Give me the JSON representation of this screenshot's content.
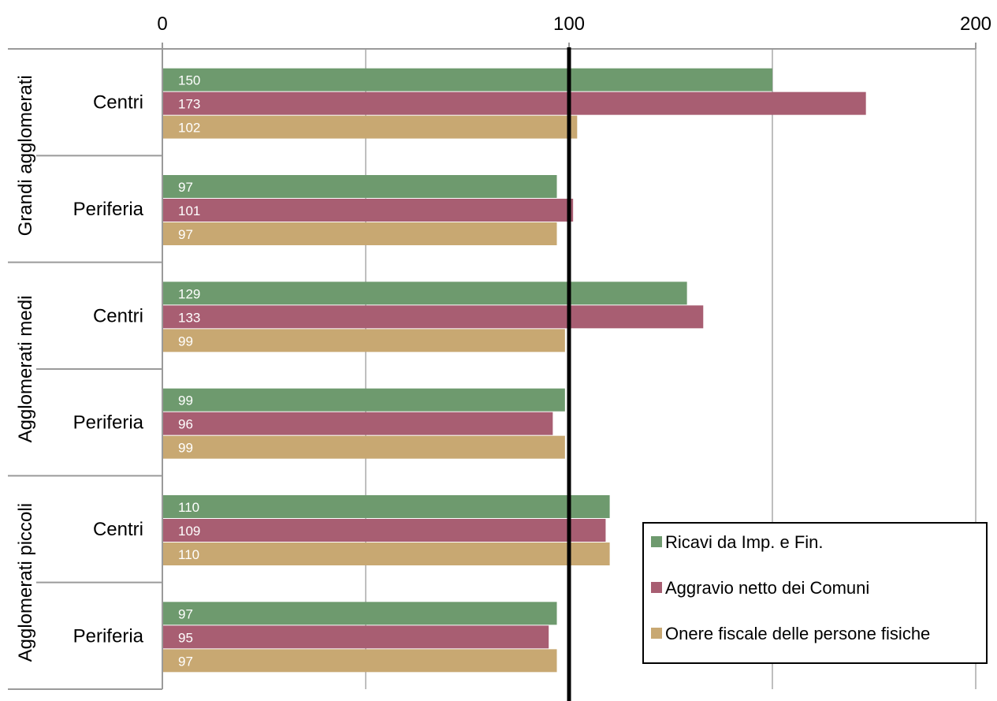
{
  "chart_data": {
    "type": "bar",
    "orientation": "horizontal",
    "xlim": [
      0,
      200
    ],
    "x_ticks": [
      "0",
      "100",
      "200"
    ],
    "x_axis_position": "top",
    "reference_line": 100,
    "grid": true,
    "legend_position": "bottom-right",
    "groups": [
      {
        "label": "Grandi agglomerati",
        "categories": [
          "Centri",
          "Periferia"
        ]
      },
      {
        "label": "Agglomerati medi",
        "categories": [
          "Centri",
          "Periferia"
        ]
      },
      {
        "label": "Agglomerati piccoli",
        "categories": [
          "Centri",
          "Periferia"
        ]
      }
    ],
    "series": [
      {
        "name": "Ricavi da Imp. e Fin.",
        "color": "#6e9a6e",
        "values": [
          150,
          97,
          129,
          99,
          110,
          97
        ]
      },
      {
        "name": "Aggravio netto dei Comuni",
        "color": "#a85e72",
        "values": [
          173,
          101,
          133,
          96,
          109,
          95
        ]
      },
      {
        "name": "Onere fiscale delle persone fisiche",
        "color": "#c8a872",
        "values": [
          102,
          97,
          99,
          99,
          110,
          97
        ]
      }
    ]
  }
}
